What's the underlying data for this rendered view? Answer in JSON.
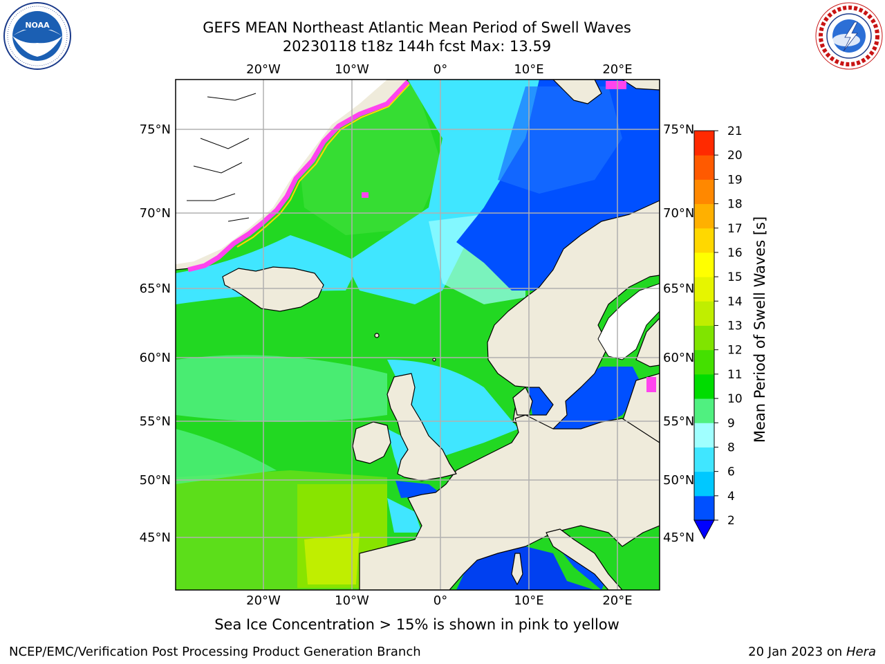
{
  "title_line1": "GEFS MEAN Northeast Atlantic Mean Period of Swell Waves",
  "title_line2": "20230118 t18z 144h fcst   Max: 13.59",
  "subtitle": "Sea Ice Concentration > 15% is shown in pink to yellow",
  "footer_left": "NCEP/EMC/Verification Post Processing Product Generation Branch",
  "footer_right_date": "20 Jan 2023 on ",
  "footer_right_machine": "Hera",
  "logos": {
    "left": "noaa-logo",
    "right": "nws-logo"
  },
  "map": {
    "lon_labels": [
      "20°W",
      "10°W",
      "0°",
      "10°E",
      "20°E"
    ],
    "lat_labels": [
      "75°N",
      "70°N",
      "65°N",
      "60°N",
      "55°N",
      "50°N",
      "45°N"
    ],
    "land_color": "#efebdb",
    "grid_color": "#b0b0b0"
  },
  "colorbar": {
    "label": "Mean Period of Swell Waves [s]",
    "ticks": [
      "2",
      "4",
      "6",
      "8",
      "9",
      "10",
      "11",
      "12",
      "13",
      "14",
      "15",
      "16",
      "17",
      "18",
      "19",
      "20",
      "21"
    ],
    "colors": [
      "#0050ff",
      "#00c8ff",
      "#40e6ff",
      "#a0ffff",
      "#50f080",
      "#00dc00",
      "#44e000",
      "#80e400",
      "#c0ee00",
      "#e6f500",
      "#ffff00",
      "#ffd800",
      "#ffb000",
      "#ff8800",
      "#ff5a00",
      "#ff2a00"
    ]
  }
}
